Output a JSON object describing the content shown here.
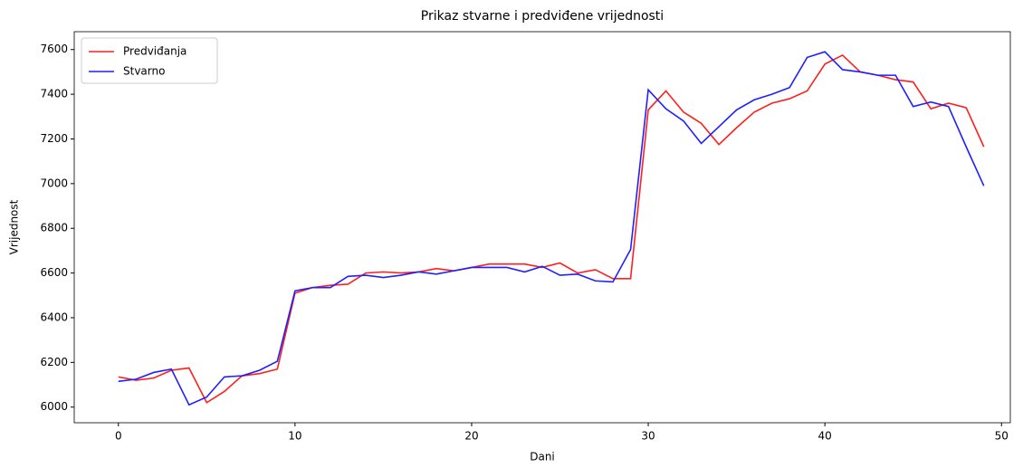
{
  "chart_data": {
    "type": "line",
    "title": "Prikaz stvarne i predviđene vrijednosti",
    "xlabel": "Dani",
    "ylabel": "Vrijednost",
    "x": [
      0,
      1,
      2,
      3,
      4,
      5,
      6,
      7,
      8,
      9,
      10,
      11,
      12,
      13,
      14,
      15,
      16,
      17,
      18,
      19,
      20,
      21,
      22,
      23,
      24,
      25,
      26,
      27,
      28,
      29,
      30,
      31,
      32,
      33,
      34,
      35,
      36,
      37,
      38,
      39,
      40,
      41,
      42,
      43,
      44,
      45,
      46,
      47,
      48,
      49
    ],
    "series": [
      {
        "name": "Predviđanja",
        "color": "#ff1f1f",
        "values": [
          6135,
          6120,
          6130,
          6165,
          6175,
          6020,
          6070,
          6140,
          6150,
          6170,
          6510,
          6535,
          6545,
          6550,
          6600,
          6605,
          6600,
          6605,
          6620,
          6610,
          6625,
          6640,
          6640,
          6640,
          6625,
          6645,
          6600,
          6615,
          6575,
          6575,
          7330,
          7415,
          7320,
          7270,
          7175,
          7250,
          7320,
          7360,
          7380,
          7415,
          7535,
          7575,
          7500,
          7485,
          7465,
          7455,
          7335,
          7360,
          7340,
          7165
        ]
      },
      {
        "name": "Stvarno",
        "color": "#1f1fff",
        "values": [
          6115,
          6125,
          6155,
          6170,
          6010,
          6045,
          6135,
          6140,
          6165,
          6205,
          6520,
          6535,
          6535,
          6585,
          6590,
          6580,
          6590,
          6605,
          6595,
          6610,
          6625,
          6625,
          6625,
          6605,
          6630,
          6590,
          6595,
          6565,
          6560,
          6705,
          7420,
          7335,
          7280,
          7180,
          7255,
          7330,
          7375,
          7400,
          7430,
          7565,
          7590,
          7510,
          7500,
          7485,
          7485,
          7345,
          7365,
          7345,
          7165,
          6990
        ]
      }
    ],
    "xlim": [
      -2.5,
      50.5
    ],
    "xticks": [
      0,
      10,
      20,
      30,
      40,
      50
    ],
    "ylim": [
      5930,
      7680
    ],
    "yticks": [
      6000,
      6200,
      6400,
      6600,
      6800,
      7000,
      7200,
      7400,
      7600
    ],
    "legend": "upper left"
  }
}
